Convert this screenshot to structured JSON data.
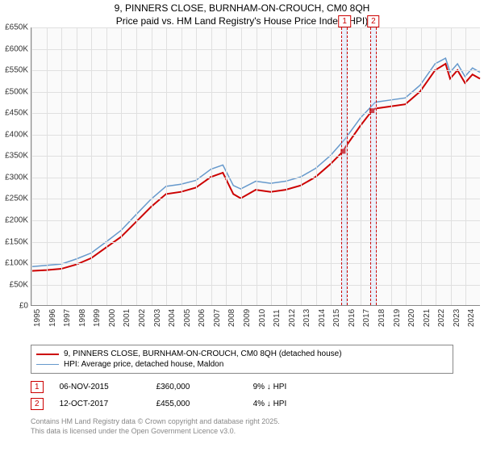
{
  "title_line1": "9, PINNERS CLOSE, BURNHAM-ON-CROUCH, CM0 8QH",
  "title_line2": "Price paid vs. HM Land Registry's House Price Index (HPI)",
  "chart": {
    "type": "line",
    "background_color": "#fafafa",
    "grid_color": "#e0e0e0",
    "axis_color": "#888888",
    "label_fontsize": 10,
    "ylim": [
      0,
      650000
    ],
    "ytick_step": 50000,
    "y_ticks": [
      "£0",
      "£50K",
      "£100K",
      "£150K",
      "£200K",
      "£250K",
      "£300K",
      "£350K",
      "£400K",
      "£450K",
      "£500K",
      "£550K",
      "£600K",
      "£650K"
    ],
    "xlim": [
      1995,
      2025
    ],
    "x_ticks": [
      1995,
      1996,
      1997,
      1998,
      1999,
      2000,
      2001,
      2002,
      2003,
      2004,
      2005,
      2006,
      2007,
      2008,
      2009,
      2010,
      2011,
      2012,
      2013,
      2014,
      2015,
      2016,
      2017,
      2018,
      2019,
      2020,
      2021,
      2022,
      2023,
      2024
    ],
    "series": [
      {
        "name": "red",
        "color": "#cc0000",
        "line_width": 2,
        "points": [
          [
            1995,
            80000
          ],
          [
            1996,
            82000
          ],
          [
            1997,
            85000
          ],
          [
            1998,
            95000
          ],
          [
            1999,
            110000
          ],
          [
            2000,
            135000
          ],
          [
            2001,
            160000
          ],
          [
            2002,
            195000
          ],
          [
            2003,
            230000
          ],
          [
            2004,
            260000
          ],
          [
            2005,
            265000
          ],
          [
            2006,
            275000
          ],
          [
            2007,
            300000
          ],
          [
            2007.8,
            310000
          ],
          [
            2008.5,
            260000
          ],
          [
            2009,
            250000
          ],
          [
            2010,
            270000
          ],
          [
            2011,
            265000
          ],
          [
            2012,
            270000
          ],
          [
            2013,
            280000
          ],
          [
            2014,
            300000
          ],
          [
            2015,
            330000
          ],
          [
            2015.85,
            360000
          ],
          [
            2016,
            370000
          ],
          [
            2017,
            420000
          ],
          [
            2017.78,
            455000
          ],
          [
            2018,
            460000
          ],
          [
            2019,
            465000
          ],
          [
            2020,
            470000
          ],
          [
            2021,
            500000
          ],
          [
            2022,
            550000
          ],
          [
            2022.7,
            565000
          ],
          [
            2023,
            530000
          ],
          [
            2023.5,
            550000
          ],
          [
            2024,
            520000
          ],
          [
            2024.5,
            540000
          ],
          [
            2025,
            530000
          ]
        ]
      },
      {
        "name": "blue",
        "color": "#6699cc",
        "line_width": 1.5,
        "points": [
          [
            1995,
            90000
          ],
          [
            1996,
            93000
          ],
          [
            1997,
            96000
          ],
          [
            1998,
            108000
          ],
          [
            1999,
            122000
          ],
          [
            2000,
            148000
          ],
          [
            2001,
            175000
          ],
          [
            2002,
            212000
          ],
          [
            2003,
            248000
          ],
          [
            2004,
            278000
          ],
          [
            2005,
            283000
          ],
          [
            2006,
            292000
          ],
          [
            2007,
            318000
          ],
          [
            2007.8,
            328000
          ],
          [
            2008.5,
            280000
          ],
          [
            2009,
            272000
          ],
          [
            2010,
            290000
          ],
          [
            2011,
            285000
          ],
          [
            2012,
            290000
          ],
          [
            2013,
            300000
          ],
          [
            2014,
            320000
          ],
          [
            2015,
            350000
          ],
          [
            2016,
            390000
          ],
          [
            2017,
            438000
          ],
          [
            2018,
            475000
          ],
          [
            2019,
            480000
          ],
          [
            2020,
            485000
          ],
          [
            2021,
            515000
          ],
          [
            2022,
            565000
          ],
          [
            2022.7,
            578000
          ],
          [
            2023,
            545000
          ],
          [
            2023.5,
            565000
          ],
          [
            2024,
            535000
          ],
          [
            2024.5,
            555000
          ],
          [
            2025,
            545000
          ]
        ]
      }
    ],
    "sale_markers": [
      {
        "num": "1",
        "x": 2015.85,
        "y": 360000
      },
      {
        "num": "2",
        "x": 2017.78,
        "y": 455000
      }
    ],
    "band_width_years": 0.35
  },
  "legend": {
    "items": [
      {
        "color": "#cc0000",
        "width": 2,
        "label": "9, PINNERS CLOSE, BURNHAM-ON-CROUCH, CM0 8QH (detached house)"
      },
      {
        "color": "#6699cc",
        "width": 1.5,
        "label": "HPI: Average price, detached house, Maldon"
      }
    ]
  },
  "sales_table": {
    "rows": [
      {
        "num": "1",
        "date": "06-NOV-2015",
        "price": "£360,000",
        "diff": "9% ↓ HPI"
      },
      {
        "num": "2",
        "date": "12-OCT-2017",
        "price": "£455,000",
        "diff": "4% ↓ HPI"
      }
    ]
  },
  "footer": {
    "line1": "Contains HM Land Registry data © Crown copyright and database right 2025.",
    "line2": "This data is licensed under the Open Government Licence v3.0."
  }
}
